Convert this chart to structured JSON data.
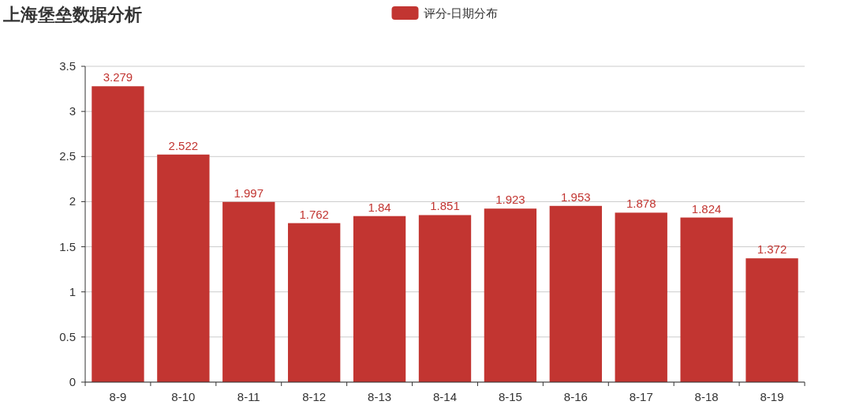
{
  "chart_data": {
    "type": "bar",
    "title": "上海堡垒数据分析",
    "categories": [
      "8-9",
      "8-10",
      "8-11",
      "8-12",
      "8-13",
      "8-14",
      "8-15",
      "8-16",
      "8-17",
      "8-18",
      "8-19"
    ],
    "series": [
      {
        "name": "评分-日期分布",
        "color": "#c23531",
        "values": [
          3.279,
          2.522,
          1.997,
          1.762,
          1.84,
          1.851,
          1.923,
          1.953,
          1.878,
          1.824,
          1.372
        ]
      }
    ],
    "ylim": [
      0,
      3.5
    ],
    "yticks": [
      0,
      0.5,
      1,
      1.5,
      2,
      2.5,
      3,
      3.5
    ],
    "grid": "y",
    "legend": "top",
    "data_labels": true
  }
}
